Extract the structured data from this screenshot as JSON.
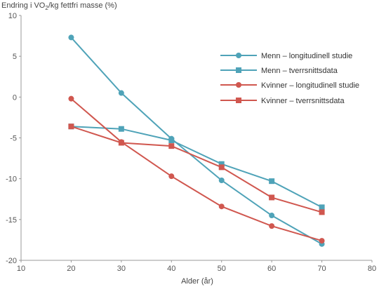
{
  "chart_data": {
    "type": "line",
    "ylabel_parts": [
      "Endring i VO",
      "2",
      "/kg fettfri masse (%)"
    ],
    "xlabel": "Alder (år)",
    "xlim": [
      10,
      80
    ],
    "ylim": [
      -20,
      10
    ],
    "x_ticks": [
      "10",
      "20",
      "30",
      "40",
      "50",
      "60",
      "70",
      "80"
    ],
    "y_ticks": [
      "10",
      "5",
      "0",
      "-5",
      "-10",
      "-15",
      "-20"
    ],
    "grid": false,
    "legend_position": "top-right",
    "colors": {
      "menn": "#4fa3b8",
      "kvinner": "#d0574f"
    },
    "series": [
      {
        "name": "Menn – longitudinell studie",
        "marker": "circle",
        "color": "#4fa3b8",
        "x": [
          20,
          30,
          40,
          50,
          60,
          70
        ],
        "y": [
          7.3,
          0.5,
          -5.1,
          -10.2,
          -14.5,
          -18.0
        ]
      },
      {
        "name": "Menn – tverrsnittsdata",
        "marker": "square",
        "color": "#4fa3b8",
        "x": [
          20,
          30,
          40,
          50,
          60,
          70
        ],
        "y": [
          -3.6,
          -3.9,
          -5.3,
          -8.2,
          -10.3,
          -13.5
        ]
      },
      {
        "name": "Kvinner – longitudinell studie",
        "marker": "circle",
        "color": "#d0574f",
        "x": [
          20,
          30,
          40,
          50,
          60,
          70
        ],
        "y": [
          -0.2,
          -5.5,
          -9.7,
          -13.4,
          -15.8,
          -17.6
        ]
      },
      {
        "name": "Kvinner – tverrsnittsdata",
        "marker": "square",
        "color": "#d0574f",
        "x": [
          20,
          30,
          40,
          50,
          60,
          70
        ],
        "y": [
          -3.6,
          -5.6,
          -6.0,
          -8.6,
          -12.3,
          -14.1
        ]
      }
    ]
  }
}
